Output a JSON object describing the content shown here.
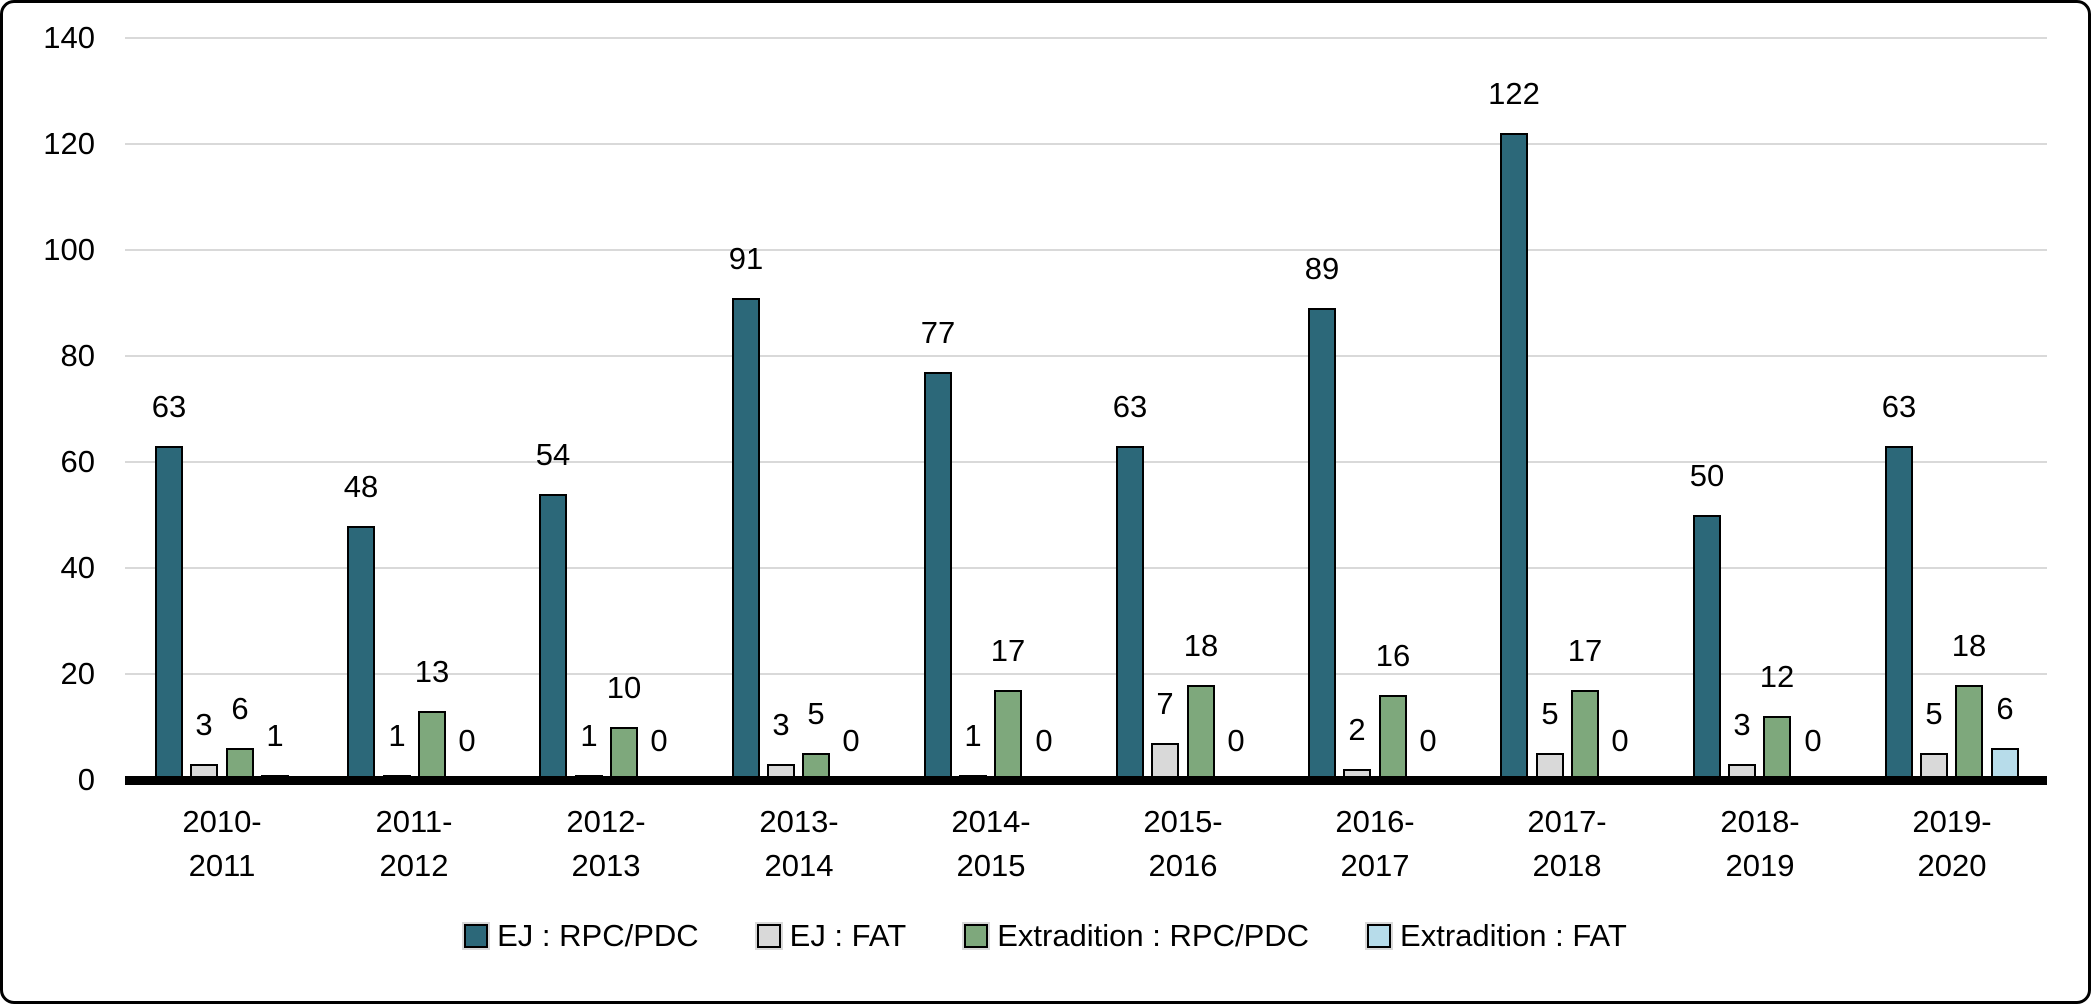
{
  "chart_data": {
    "type": "bar",
    "title": "",
    "xlabel": "",
    "ylabel": "",
    "ylim": [
      0,
      140
    ],
    "yticks": [
      0,
      20,
      40,
      60,
      80,
      100,
      120,
      140
    ],
    "grid": "horizontal-light-gray",
    "gridline_color": "#d9d9d9",
    "axis_line_color": "#000000",
    "bar_outline_color": "#000000",
    "data_labels": true,
    "legend_position": "bottom",
    "categories": [
      "2010-2011",
      "2011-2012",
      "2012-2013",
      "2013-2014",
      "2014-2015",
      "2015-2016",
      "2016-2017",
      "2017-2018",
      "2018-2019",
      "2019-2020"
    ],
    "category_label_lines": [
      [
        "2010-",
        "2011"
      ],
      [
        "2011-",
        "2012"
      ],
      [
        "2012-",
        "2013"
      ],
      [
        "2013-",
        "2014"
      ],
      [
        "2014-",
        "2015"
      ],
      [
        "2015-",
        "2016"
      ],
      [
        "2016-",
        "2017"
      ],
      [
        "2017-",
        "2018"
      ],
      [
        "2018-",
        "2019"
      ],
      [
        "2019-",
        "2020"
      ]
    ],
    "series": [
      {
        "name": "EJ : RPC/PDC",
        "color": "#2c6879",
        "values": [
          63,
          48,
          54,
          91,
          77,
          63,
          89,
          122,
          50,
          63
        ]
      },
      {
        "name": "EJ : FAT",
        "color": "#d9d9d9",
        "values": [
          3,
          1,
          1,
          3,
          1,
          7,
          2,
          5,
          3,
          5
        ]
      },
      {
        "name": "Extradition : RPC/PDC",
        "color": "#7ea87c",
        "values": [
          6,
          13,
          10,
          5,
          17,
          18,
          16,
          17,
          12,
          18
        ]
      },
      {
        "name": "Extradition : FAT",
        "color": "#b7dcea",
        "values": [
          1,
          0,
          0,
          0,
          0,
          0,
          0,
          0,
          0,
          6
        ]
      }
    ]
  }
}
